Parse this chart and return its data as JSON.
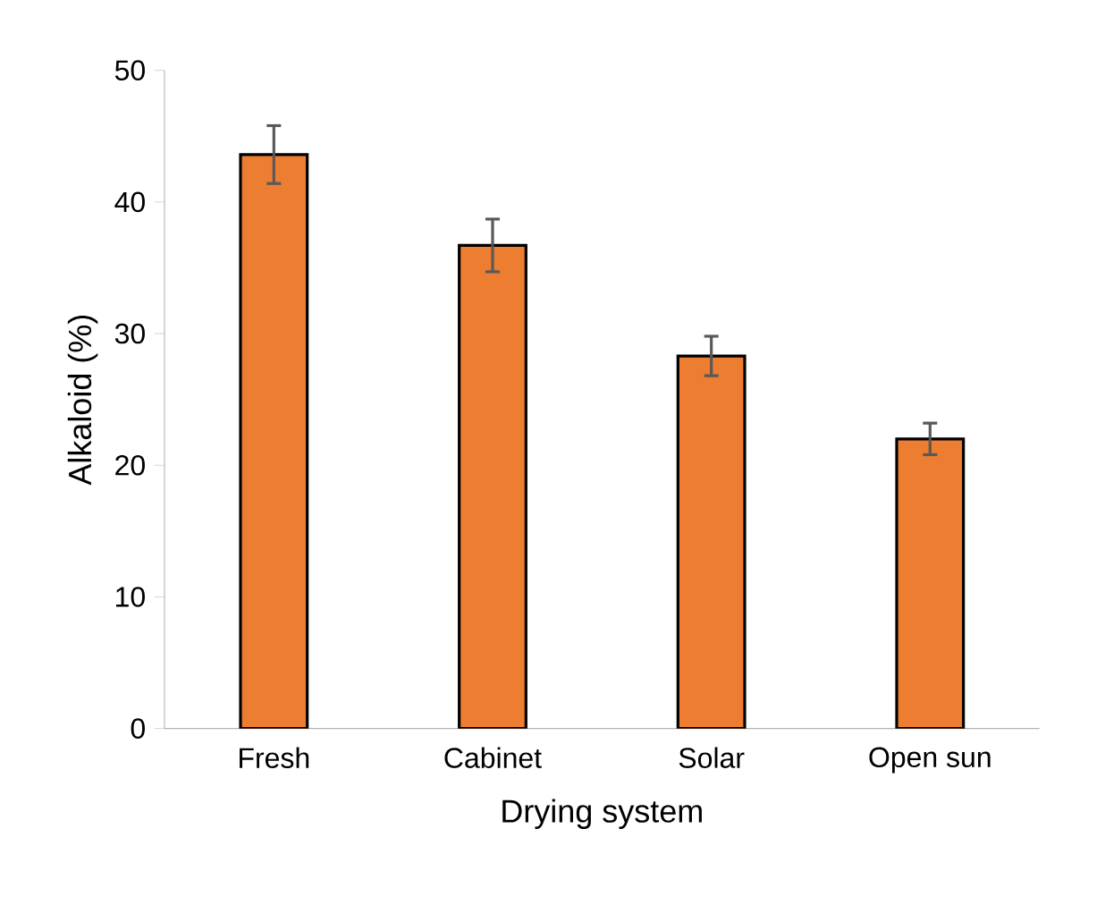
{
  "chart_data": {
    "type": "bar",
    "xlabel": "Drying system",
    "ylabel": "Alkaloid (%)",
    "categories": [
      "Fresh",
      "Cabinet",
      "Solar",
      "Open sun"
    ],
    "values": [
      43.6,
      36.7,
      28.3,
      22.0
    ],
    "errors": [
      2.2,
      2.0,
      1.5,
      1.2
    ],
    "color": "#ed7d31",
    "ylim": [
      0,
      50
    ],
    "yticks": [
      0,
      10,
      20,
      30,
      40,
      50
    ]
  }
}
